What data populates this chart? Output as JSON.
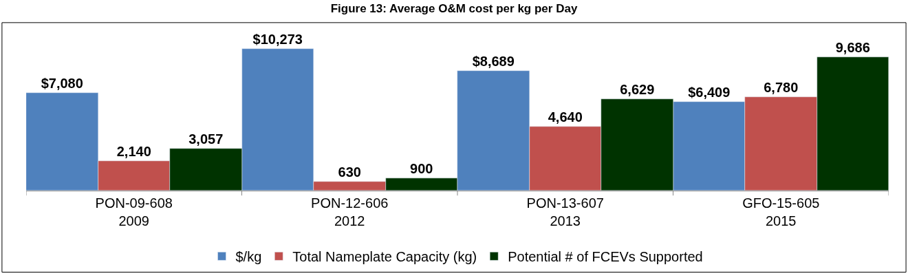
{
  "chart_data": {
    "type": "bar",
    "title": "Figure 13: Average O&M cost per kg per Day",
    "categories": [
      "PON-09-608\n2009",
      "PON-12-606\n2012",
      "PON-13-607\n2013",
      "GFO-15-605\n2015"
    ],
    "series": [
      {
        "name": "$/kg",
        "color": "#4f81bd",
        "values": [
          7080,
          10273,
          8689,
          6409
        ],
        "value_labels": [
          "$7,080",
          "$10,273",
          "$8,689",
          "$6,409"
        ]
      },
      {
        "name": "Total Nameplate Capacity (kg)",
        "color": "#c0504d",
        "values": [
          2140,
          630,
          4640,
          6780
        ],
        "value_labels": [
          "2,140",
          "630",
          "4,640",
          "6,780"
        ]
      },
      {
        "name": "Potential # of FCEVs Supported",
        "color": "#003300",
        "values": [
          3057,
          900,
          6629,
          9686
        ],
        "value_labels": [
          "3,057",
          "900",
          "6,629",
          "9,686"
        ]
      }
    ],
    "legend": "bottom"
  }
}
